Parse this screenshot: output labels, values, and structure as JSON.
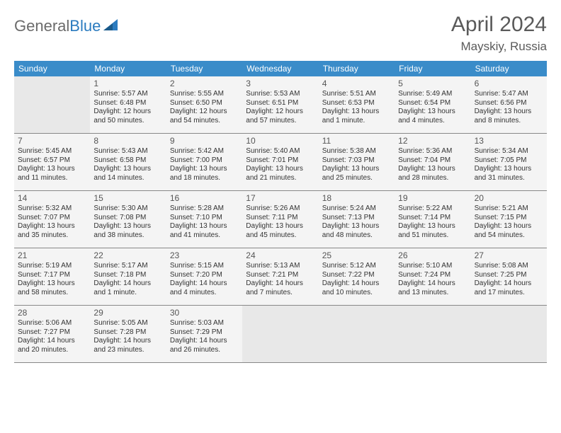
{
  "logo": {
    "text1": "General",
    "text2": "Blue"
  },
  "title": "April 2024",
  "location": "Mayskiy, Russia",
  "colors": {
    "header_bg": "#3a8cc9",
    "empty_cell": "#e8e8e8",
    "filled_cell": "#f4f4f4",
    "text": "#333333",
    "title_text": "#5a5a5a"
  },
  "dayHeaders": [
    "Sunday",
    "Monday",
    "Tuesday",
    "Wednesday",
    "Thursday",
    "Friday",
    "Saturday"
  ],
  "weeks": [
    [
      {
        "empty": true
      },
      {
        "date": "1",
        "sunrise": "5:57 AM",
        "sunset": "6:48 PM",
        "daylight": "12 hours and 50 minutes."
      },
      {
        "date": "2",
        "sunrise": "5:55 AM",
        "sunset": "6:50 PM",
        "daylight": "12 hours and 54 minutes."
      },
      {
        "date": "3",
        "sunrise": "5:53 AM",
        "sunset": "6:51 PM",
        "daylight": "12 hours and 57 minutes."
      },
      {
        "date": "4",
        "sunrise": "5:51 AM",
        "sunset": "6:53 PM",
        "daylight": "13 hours and 1 minute."
      },
      {
        "date": "5",
        "sunrise": "5:49 AM",
        "sunset": "6:54 PM",
        "daylight": "13 hours and 4 minutes."
      },
      {
        "date": "6",
        "sunrise": "5:47 AM",
        "sunset": "6:56 PM",
        "daylight": "13 hours and 8 minutes."
      }
    ],
    [
      {
        "date": "7",
        "sunrise": "5:45 AM",
        "sunset": "6:57 PM",
        "daylight": "13 hours and 11 minutes."
      },
      {
        "date": "8",
        "sunrise": "5:43 AM",
        "sunset": "6:58 PM",
        "daylight": "13 hours and 14 minutes."
      },
      {
        "date": "9",
        "sunrise": "5:42 AM",
        "sunset": "7:00 PM",
        "daylight": "13 hours and 18 minutes."
      },
      {
        "date": "10",
        "sunrise": "5:40 AM",
        "sunset": "7:01 PM",
        "daylight": "13 hours and 21 minutes."
      },
      {
        "date": "11",
        "sunrise": "5:38 AM",
        "sunset": "7:03 PM",
        "daylight": "13 hours and 25 minutes."
      },
      {
        "date": "12",
        "sunrise": "5:36 AM",
        "sunset": "7:04 PM",
        "daylight": "13 hours and 28 minutes."
      },
      {
        "date": "13",
        "sunrise": "5:34 AM",
        "sunset": "7:05 PM",
        "daylight": "13 hours and 31 minutes."
      }
    ],
    [
      {
        "date": "14",
        "sunrise": "5:32 AM",
        "sunset": "7:07 PM",
        "daylight": "13 hours and 35 minutes."
      },
      {
        "date": "15",
        "sunrise": "5:30 AM",
        "sunset": "7:08 PM",
        "daylight": "13 hours and 38 minutes."
      },
      {
        "date": "16",
        "sunrise": "5:28 AM",
        "sunset": "7:10 PM",
        "daylight": "13 hours and 41 minutes."
      },
      {
        "date": "17",
        "sunrise": "5:26 AM",
        "sunset": "7:11 PM",
        "daylight": "13 hours and 45 minutes."
      },
      {
        "date": "18",
        "sunrise": "5:24 AM",
        "sunset": "7:13 PM",
        "daylight": "13 hours and 48 minutes."
      },
      {
        "date": "19",
        "sunrise": "5:22 AM",
        "sunset": "7:14 PM",
        "daylight": "13 hours and 51 minutes."
      },
      {
        "date": "20",
        "sunrise": "5:21 AM",
        "sunset": "7:15 PM",
        "daylight": "13 hours and 54 minutes."
      }
    ],
    [
      {
        "date": "21",
        "sunrise": "5:19 AM",
        "sunset": "7:17 PM",
        "daylight": "13 hours and 58 minutes."
      },
      {
        "date": "22",
        "sunrise": "5:17 AM",
        "sunset": "7:18 PM",
        "daylight": "14 hours and 1 minute."
      },
      {
        "date": "23",
        "sunrise": "5:15 AM",
        "sunset": "7:20 PM",
        "daylight": "14 hours and 4 minutes."
      },
      {
        "date": "24",
        "sunrise": "5:13 AM",
        "sunset": "7:21 PM",
        "daylight": "14 hours and 7 minutes."
      },
      {
        "date": "25",
        "sunrise": "5:12 AM",
        "sunset": "7:22 PM",
        "daylight": "14 hours and 10 minutes."
      },
      {
        "date": "26",
        "sunrise": "5:10 AM",
        "sunset": "7:24 PM",
        "daylight": "14 hours and 13 minutes."
      },
      {
        "date": "27",
        "sunrise": "5:08 AM",
        "sunset": "7:25 PM",
        "daylight": "14 hours and 17 minutes."
      }
    ],
    [
      {
        "date": "28",
        "sunrise": "5:06 AM",
        "sunset": "7:27 PM",
        "daylight": "14 hours and 20 minutes."
      },
      {
        "date": "29",
        "sunrise": "5:05 AM",
        "sunset": "7:28 PM",
        "daylight": "14 hours and 23 minutes."
      },
      {
        "date": "30",
        "sunrise": "5:03 AM",
        "sunset": "7:29 PM",
        "daylight": "14 hours and 26 minutes."
      },
      {
        "empty": true
      },
      {
        "empty": true
      },
      {
        "empty": true
      },
      {
        "empty": true
      }
    ]
  ],
  "labels": {
    "sunrise": "Sunrise: ",
    "sunset": "Sunset: ",
    "daylight": "Daylight: "
  }
}
